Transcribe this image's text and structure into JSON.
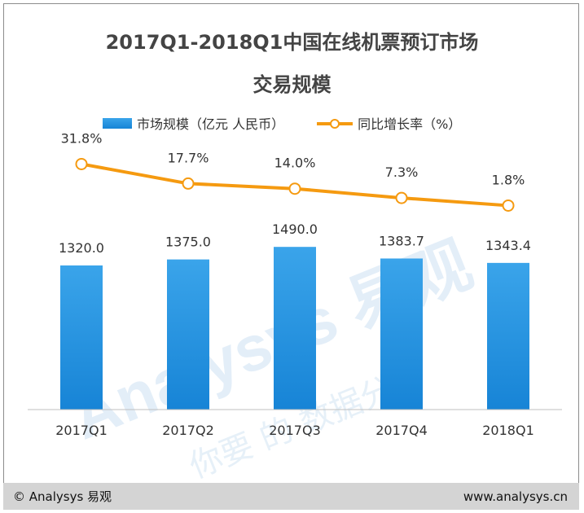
{
  "title": {
    "line1": "2017Q1-2018Q1中国在线机票预订市场",
    "line2": "交易规模"
  },
  "legend": {
    "bar_label": "市场规模（亿元 人民币）",
    "line_label": "同比增长率（%）"
  },
  "colors": {
    "bar_top": "#3aa4ea",
    "bar_bottom": "#1784d6",
    "line": "#f59a10",
    "text": "#333333",
    "watermark": "#e3eef8",
    "footer_bg": "#d4d4d4"
  },
  "chart_data": {
    "type": "bar",
    "categories": [
      "2017Q1",
      "2017Q2",
      "2017Q3",
      "2017Q4",
      "2018Q1"
    ],
    "series": [
      {
        "name": "市场规模（亿元 人民币）",
        "type": "bar",
        "values": [
          1320.0,
          1375.0,
          1490.0,
          1383.7,
          1343.4
        ],
        "labels": [
          "1320.0",
          "1375.0",
          "1490.0",
          "1383.7",
          "1343.4"
        ]
      },
      {
        "name": "同比增长率（%）",
        "type": "line",
        "values": [
          31.8,
          17.7,
          14.0,
          7.3,
          1.8
        ],
        "labels": [
          "31.8%",
          "17.7%",
          "14.0%",
          "7.3%",
          "1.8%"
        ]
      }
    ],
    "grid": false,
    "legend_position": "top"
  },
  "watermark": {
    "brand": "Analysys 易观",
    "slogan": "你要 的 数据分析"
  },
  "footer": {
    "left": "© Analysys 易观",
    "right": "www.analysys.cn"
  }
}
